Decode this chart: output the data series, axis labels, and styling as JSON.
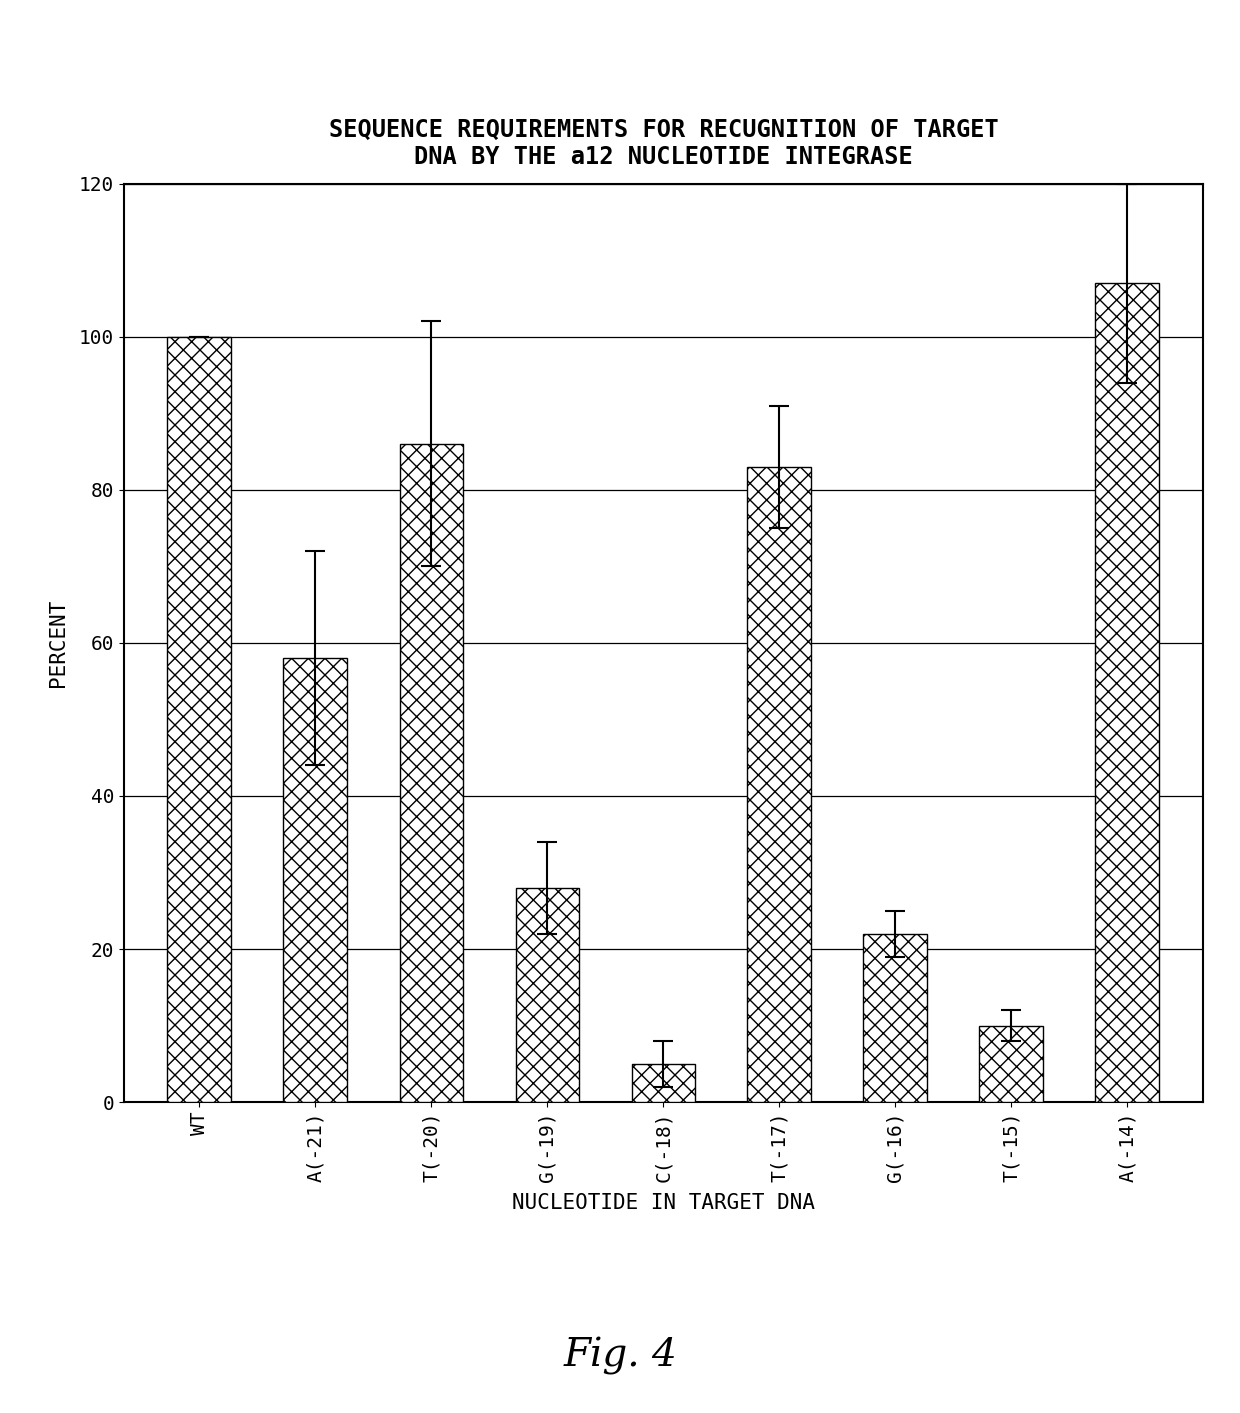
{
  "title_line1": "SEQUENCE REQUIREMENTS FOR RECUGNITION OF TARGET",
  "title_line2": "DNA BY THE a12 NUCLEOTIDE INTEGRASE",
  "xlabel": "NUCLEOTIDE IN TARGET DNA",
  "ylabel": "PERCENT",
  "fig_label": "Fig. 4",
  "categories": [
    "WT",
    "A(-21)",
    "T(-20)",
    "G(-19)",
    "C(-18)",
    "T(-17)",
    "G(-16)",
    "T(-15)",
    "A(-14)"
  ],
  "values": [
    100,
    58,
    86,
    28,
    5,
    83,
    22,
    10,
    107
  ],
  "errors": [
    0,
    14,
    16,
    6,
    3,
    8,
    3,
    2,
    13
  ],
  "ylim": [
    0,
    120
  ],
  "yticks": [
    0,
    20,
    40,
    60,
    80,
    100,
    120
  ],
  "bar_color": "#ffffff",
  "hatch_pattern": "xx",
  "background_color": "#ffffff",
  "title_fontsize": 17,
  "axis_label_fontsize": 15,
  "tick_fontsize": 14,
  "fig_label_fontsize": 28
}
